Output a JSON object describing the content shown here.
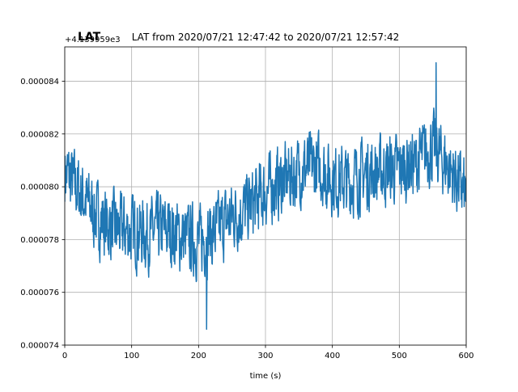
{
  "chart_data": {
    "type": "line",
    "title": "LAT from 2020/07/21 12:47:42 to 2020/07/21 12:57:42",
    "title_overlap": "LAT",
    "offset_label": "+4.139959e3",
    "xlabel": "time (s)",
    "ylabel": "",
    "xlim": [
      0,
      600
    ],
    "ylim": [
      7.4e-05,
      8.53e-05
    ],
    "x_ticks": [
      0,
      100,
      200,
      300,
      400,
      500,
      600
    ],
    "x_tick_labels": [
      "0",
      "100",
      "200",
      "300",
      "400",
      "500",
      "600"
    ],
    "y_ticks": [
      7.4e-05,
      7.6e-05,
      7.8e-05,
      8e-05,
      8.2e-05,
      8.4e-05
    ],
    "y_tick_labels": [
      "0.000074",
      "0.000076",
      "0.000078",
      "0.000080",
      "0.000082",
      "0.000084"
    ],
    "grid": true,
    "series": [
      {
        "color": "#1f77b4",
        "x": [
          0,
          25,
          50,
          75,
          100,
          125,
          150,
          175,
          200,
          225,
          250,
          275,
          300,
          325,
          350,
          375,
          400,
          425,
          450,
          475,
          500,
          525,
          550,
          575,
          600
        ],
        "y": [
          8.06e-05,
          7.97e-05,
          7.88e-05,
          7.84e-05,
          7.83e-05,
          7.82e-05,
          7.84e-05,
          7.81e-05,
          7.79e-05,
          7.83e-05,
          7.89e-05,
          7.92e-05,
          7.98e-05,
          8.02e-05,
          8.06e-05,
          8.08e-05,
          8.03e-05,
          8.02e-05,
          8.05e-05,
          8.06e-05,
          8.07e-05,
          8.09e-05,
          8.15e-05,
          8.07e-05,
          7.97e-05
        ],
        "noise_amplitude": 1.8e-06,
        "min_point": {
          "x": 212,
          "y": 7.46e-05
        },
        "max_point": {
          "x": 555,
          "y": 8.47e-05
        }
      }
    ]
  }
}
